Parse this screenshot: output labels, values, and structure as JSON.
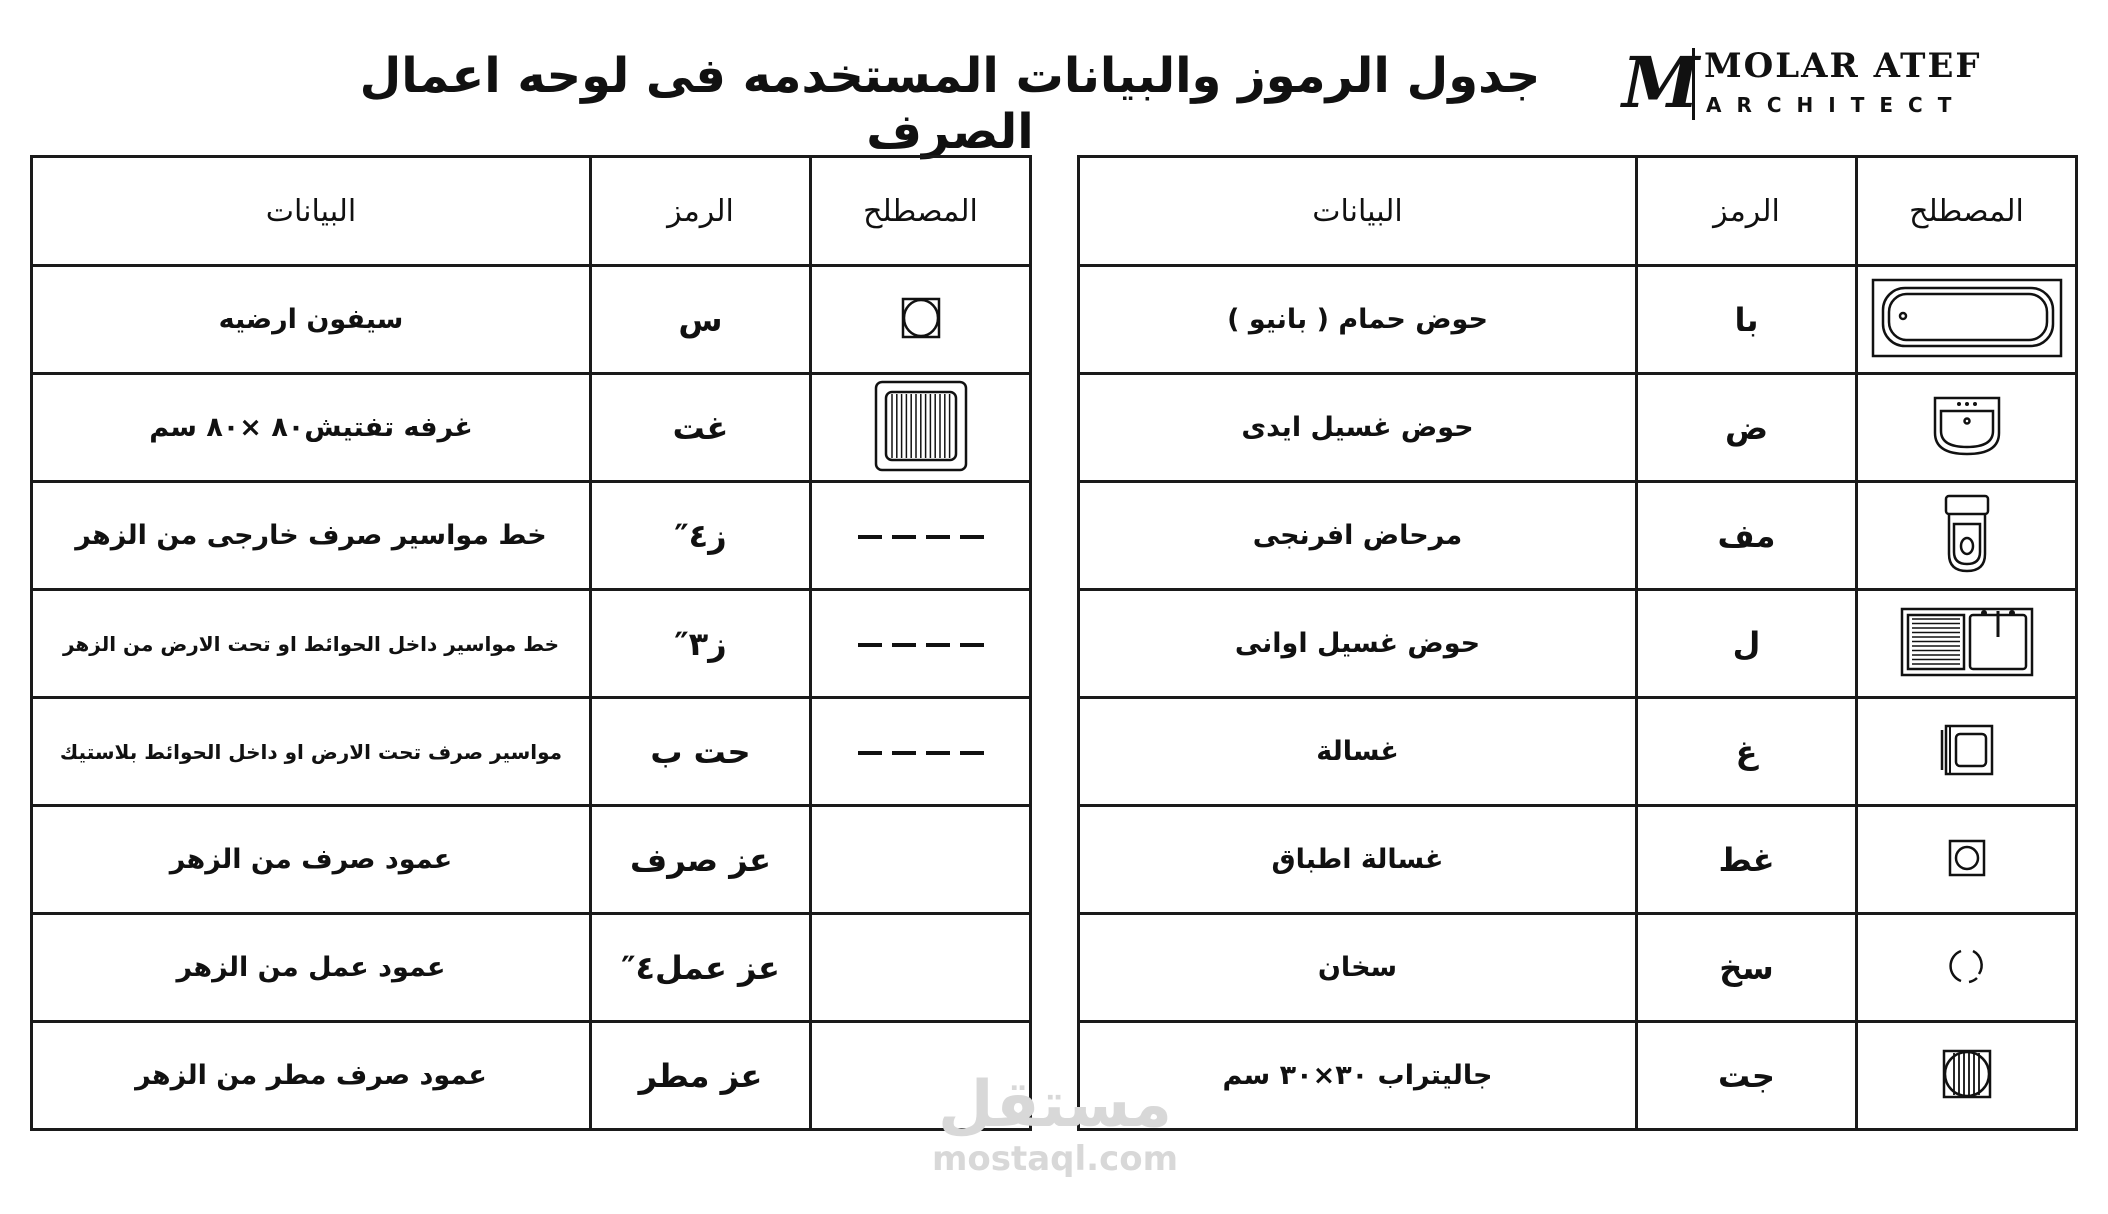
{
  "title": "جدول الرموز والبيانات المستخدمه فى لوحه اعمال الصرف",
  "logo": {
    "mark": "M",
    "name": "MOLAR ATEF",
    "subtitle": "ARCHITECT"
  },
  "headers": {
    "term": "المصطلح",
    "symbol": "الرمز",
    "data": "البيانات"
  },
  "right_table": [
    {
      "icon": "bathtub-icon",
      "symbol": "با",
      "data": "حوض حمام ( بانيو )"
    },
    {
      "icon": "washbasin-icon",
      "symbol": "ض",
      "data": "حوض غسيل ايدى"
    },
    {
      "icon": "toilet-icon",
      "symbol": "مف",
      "data": "مرحاض افرنجى"
    },
    {
      "icon": "kitchen-sink-icon",
      "symbol": "ل",
      "data": "حوض غسيل اوانى"
    },
    {
      "icon": "washing-machine-icon",
      "symbol": "غ",
      "data": "غسالة"
    },
    {
      "icon": "dishwasher-icon",
      "symbol": "غط",
      "data": "غسالة اطباق"
    },
    {
      "icon": "water-heater-icon",
      "symbol": "سخ",
      "data": "سخان"
    },
    {
      "icon": "gully-trap-icon",
      "symbol": "جت",
      "data": "جاليتراب ٣٠×٣٠ سم"
    }
  ],
  "left_table": [
    {
      "icon": "floor-siphon-icon",
      "symbol": "س",
      "data": "سيفون ارضيه"
    },
    {
      "icon": "inspection-chamber-icon",
      "symbol": "غت",
      "data": "غرفه تفتيش٨٠ ×٨٠ سم"
    },
    {
      "icon": "dashed-line-icon",
      "symbol": "ز٤″",
      "data": "خط مواسير صرف خارجى من الزهر"
    },
    {
      "icon": "dashed-line-icon",
      "symbol": "ز٣″",
      "data": "خط مواسير داخل الحوائط او تحت الارض من الزهر",
      "small": true
    },
    {
      "icon": "dashed-line-icon",
      "symbol": "حت  ب",
      "data": "مواسير صرف تحت الارض او داخل الحوائط بلاستيك",
      "small": true
    },
    {
      "icon": "",
      "symbol": "عز صرف",
      "data": "عمود صرف من الزهر"
    },
    {
      "icon": "",
      "symbol": "عز عمل٤″",
      "data": "عمود عمل من الزهر"
    },
    {
      "icon": "",
      "symbol": "عز مطر",
      "data": "عمود صرف مطر من الزهر"
    }
  ],
  "watermark": {
    "arabic": "مستقل",
    "latin": "mostaql.com"
  }
}
